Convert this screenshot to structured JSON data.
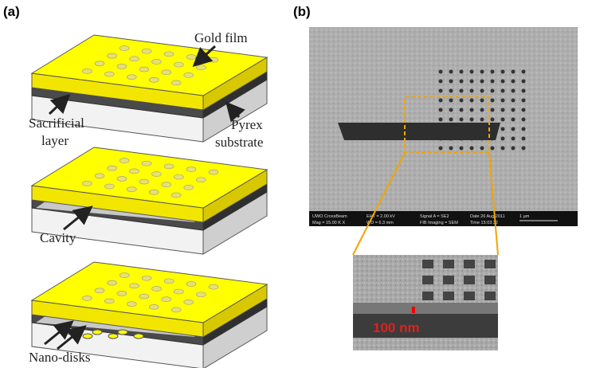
{
  "figure": {
    "panel_a": "(a)",
    "panel_b": "(b)",
    "labels": {
      "gold_film": "Gold film",
      "sacrificial_layer": [
        "Sacrificial",
        "layer"
      ],
      "pyrex_substrate": [
        "Pyrex",
        "substrate"
      ],
      "cavity": "Cavity",
      "nano_disks": "Nano-disks"
    },
    "sem": {
      "info_bar": [
        "UWO CrossBeam",
        "Mag = 15.00 K X",
        "EHT = 2.00 kV",
        "WD = 6.3 mm",
        "Signal A = SE2",
        "FIB Imaging = SEM",
        "Date 26 Aug 2011",
        "Time 15:03:32",
        "1 µm"
      ],
      "inset_scale": "100 nm"
    }
  }
}
